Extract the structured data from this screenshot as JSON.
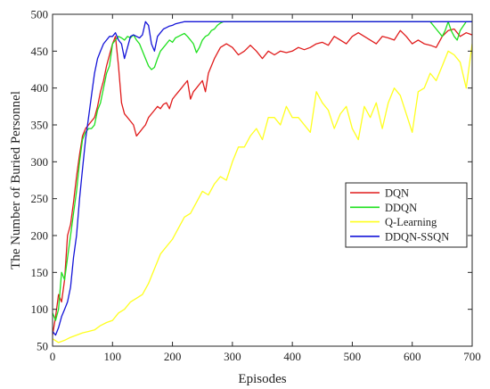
{
  "chart_data": {
    "type": "line",
    "title": "",
    "xlabel": "Episodes",
    "ylabel": "The Number of Buried Personnel",
    "xlim": [
      0,
      700
    ],
    "ylim": [
      50,
      500
    ],
    "xticks": [
      0,
      100,
      200,
      300,
      400,
      500,
      600,
      700
    ],
    "yticks": [
      50,
      100,
      150,
      200,
      250,
      300,
      350,
      400,
      450,
      500
    ],
    "grid": false,
    "legend_position": "right-middle",
    "series": [
      {
        "name": "DQN",
        "color": "#e01b1b",
        "x": [
          0,
          5,
          10,
          15,
          20,
          25,
          30,
          35,
          40,
          45,
          50,
          55,
          60,
          65,
          70,
          75,
          80,
          85,
          90,
          95,
          100,
          105,
          110,
          115,
          120,
          125,
          130,
          135,
          140,
          145,
          150,
          155,
          160,
          165,
          170,
          175,
          180,
          185,
          190,
          195,
          200,
          205,
          210,
          215,
          220,
          225,
          230,
          235,
          240,
          245,
          250,
          255,
          260,
          265,
          270,
          280,
          290,
          300,
          310,
          320,
          330,
          340,
          350,
          360,
          370,
          380,
          390,
          400,
          410,
          420,
          430,
          440,
          450,
          460,
          470,
          480,
          490,
          500,
          510,
          520,
          530,
          540,
          550,
          560,
          570,
          580,
          590,
          600,
          610,
          620,
          630,
          640,
          650,
          660,
          670,
          680,
          690,
          700
        ],
        "y": [
          65,
          90,
          120,
          110,
          140,
          200,
          215,
          245,
          280,
          310,
          335,
          345,
          350,
          355,
          360,
          375,
          395,
          410,
          430,
          445,
          460,
          470,
          430,
          380,
          365,
          360,
          355,
          350,
          335,
          340,
          345,
          350,
          360,
          365,
          370,
          375,
          372,
          378,
          380,
          372,
          385,
          390,
          395,
          400,
          405,
          410,
          385,
          395,
          400,
          405,
          410,
          395,
          420,
          430,
          440,
          455,
          460,
          455,
          445,
          450,
          458,
          450,
          440,
          450,
          445,
          450,
          448,
          450,
          455,
          452,
          455,
          460,
          462,
          458,
          470,
          465,
          460,
          470,
          475,
          470,
          465,
          460,
          470,
          468,
          465,
          478,
          470,
          460,
          465,
          460,
          458,
          455,
          470,
          478,
          480,
          470,
          475,
          472
        ]
      },
      {
        "name": "DDQN",
        "color": "#1ee01e",
        "x": [
          0,
          5,
          10,
          15,
          20,
          25,
          30,
          35,
          40,
          45,
          50,
          55,
          60,
          65,
          70,
          75,
          80,
          85,
          90,
          95,
          100,
          105,
          110,
          115,
          120,
          125,
          130,
          135,
          140,
          145,
          150,
          155,
          160,
          165,
          170,
          175,
          180,
          185,
          190,
          195,
          200,
          205,
          210,
          215,
          220,
          225,
          230,
          235,
          240,
          245,
          250,
          255,
          260,
          265,
          270,
          275,
          280,
          285,
          290,
          300,
          350,
          400,
          450,
          500,
          550,
          600,
          610,
          620,
          630,
          640,
          650,
          655,
          660,
          665,
          670,
          675,
          680,
          690,
          700
        ],
        "y": [
          95,
          85,
          100,
          150,
          140,
          170,
          200,
          230,
          260,
          300,
          330,
          340,
          345,
          345,
          350,
          370,
          380,
          400,
          420,
          430,
          460,
          465,
          470,
          468,
          465,
          470,
          468,
          472,
          465,
          460,
          450,
          440,
          430,
          425,
          428,
          440,
          450,
          455,
          460,
          465,
          462,
          468,
          470,
          472,
          474,
          470,
          465,
          460,
          448,
          455,
          465,
          470,
          472,
          478,
          480,
          485,
          488,
          490,
          490,
          490,
          490,
          490,
          490,
          490,
          490,
          490,
          490,
          490,
          490,
          480,
          470,
          478,
          490,
          478,
          470,
          465,
          478,
          490,
          490
        ]
      },
      {
        "name": "Q-Learning",
        "color": "#ffff1e",
        "x": [
          0,
          10,
          20,
          30,
          40,
          50,
          60,
          70,
          80,
          90,
          100,
          110,
          120,
          130,
          140,
          150,
          160,
          170,
          180,
          190,
          200,
          210,
          220,
          230,
          240,
          250,
          260,
          270,
          280,
          290,
          300,
          310,
          320,
          330,
          340,
          350,
          360,
          370,
          380,
          390,
          400,
          410,
          420,
          430,
          440,
          450,
          460,
          470,
          480,
          490,
          500,
          510,
          520,
          530,
          540,
          550,
          560,
          570,
          580,
          590,
          600,
          610,
          620,
          630,
          640,
          650,
          660,
          670,
          680,
          690,
          700
        ],
        "y": [
          60,
          55,
          58,
          62,
          65,
          68,
          70,
          72,
          78,
          82,
          85,
          95,
          100,
          110,
          115,
          120,
          135,
          155,
          175,
          185,
          195,
          210,
          225,
          230,
          245,
          260,
          255,
          270,
          280,
          275,
          300,
          320,
          320,
          335,
          345,
          330,
          360,
          360,
          350,
          375,
          360,
          360,
          350,
          340,
          395,
          380,
          370,
          345,
          365,
          375,
          345,
          330,
          375,
          360,
          380,
          345,
          380,
          400,
          390,
          365,
          340,
          395,
          400,
          420,
          410,
          430,
          450,
          445,
          435,
          400,
          460
        ]
      },
      {
        "name": "DDQN-SSQN",
        "color": "#1414d8",
        "x": [
          0,
          5,
          10,
          15,
          20,
          25,
          30,
          35,
          40,
          45,
          50,
          55,
          60,
          65,
          70,
          75,
          80,
          85,
          90,
          95,
          100,
          105,
          110,
          115,
          120,
          125,
          130,
          135,
          140,
          145,
          150,
          155,
          160,
          165,
          170,
          175,
          180,
          185,
          190,
          195,
          200,
          205,
          210,
          215,
          220,
          225,
          230,
          235,
          240,
          250,
          300,
          400,
          500,
          600,
          700
        ],
        "y": [
          70,
          65,
          75,
          90,
          100,
          110,
          130,
          170,
          200,
          250,
          290,
          330,
          360,
          390,
          420,
          440,
          450,
          460,
          465,
          470,
          470,
          475,
          465,
          460,
          440,
          455,
          470,
          472,
          470,
          468,
          472,
          490,
          485,
          460,
          450,
          470,
          475,
          480,
          482,
          484,
          485,
          487,
          488,
          489,
          490,
          490,
          490,
          490,
          490,
          490,
          490,
          490,
          490,
          490,
          490
        ]
      }
    ]
  }
}
